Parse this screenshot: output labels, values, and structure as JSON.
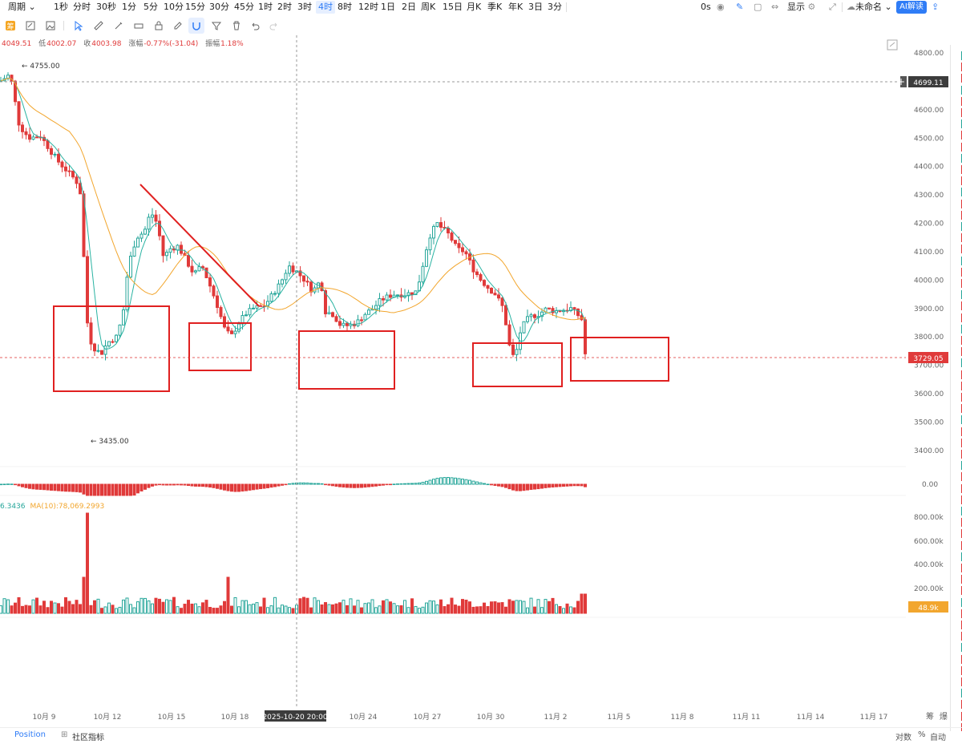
{
  "toolbar": {
    "period_label": "周期",
    "intervals": [
      "1秒",
      "分时",
      "30秒",
      "1分",
      "5分",
      "10分",
      "15分",
      "30分",
      "45分",
      "1时",
      "2时",
      "3时",
      "4时",
      "8时",
      "12时",
      "1日",
      "2日",
      "周K",
      "15日",
      "月K",
      "季K",
      "年K",
      "3日",
      "3分"
    ],
    "active_interval": "4时",
    "zoom_label": "0s",
    "display_label": "显示",
    "name_label": "未命名",
    "ai_label": "AI解读"
  },
  "ohlc": {
    "open_value": "4049.51",
    "low_label": "低",
    "low_value": "4002.07",
    "close_label": "收",
    "close_value": "4003.98",
    "change_label": "涨幅",
    "change_value": "-0.77%(-31.04)",
    "amp_label": "振幅",
    "amp_value": "1.18%"
  },
  "price_axis": {
    "ticks": [
      "4800.00",
      "4700.00",
      "4600.00",
      "4500.00",
      "4400.00",
      "4300.00",
      "4200.00",
      "4100.00",
      "4000.00",
      "3900.00",
      "3800.00",
      "3700.00",
      "3600.00",
      "3500.00",
      "3400.00"
    ],
    "crosshair_price": "4699.11",
    "current_price": "3729.05",
    "high_marker": "4755.00",
    "low_marker": "3435.00"
  },
  "macd": {
    "zero_label": "0.00"
  },
  "volume": {
    "legend_value": "6.3436",
    "legend_ma": "MA(10):78,069.2993",
    "ticks": [
      "800.00k",
      "600.00k",
      "400.00k",
      "200.00k"
    ],
    "current_badge": "48.9k"
  },
  "time_axis": {
    "labels": [
      "10月 9",
      "10月 12",
      "10月 15",
      "10月 18",
      "10月 24",
      "10月 27",
      "10月 30",
      "11月 2",
      "11月 5",
      "11月 8",
      "11月 11",
      "11月 14",
      "11月 17"
    ],
    "crosshair_time": "2025-10-20 20:00",
    "corner_a": "筹",
    "corner_b": "爆"
  },
  "bottom": {
    "position_tab": "Position",
    "indicators_tab": "社区指标",
    "log_label": "对数",
    "percent_label": "%",
    "auto_label": "自动"
  },
  "colors": {
    "up": "#26a69a",
    "down": "#e03a3a",
    "ma_fast": "#2ab3a2",
    "ma_slow": "#f2a62e",
    "annotation": "#e02020",
    "accent": "#2f7cf6"
  }
}
